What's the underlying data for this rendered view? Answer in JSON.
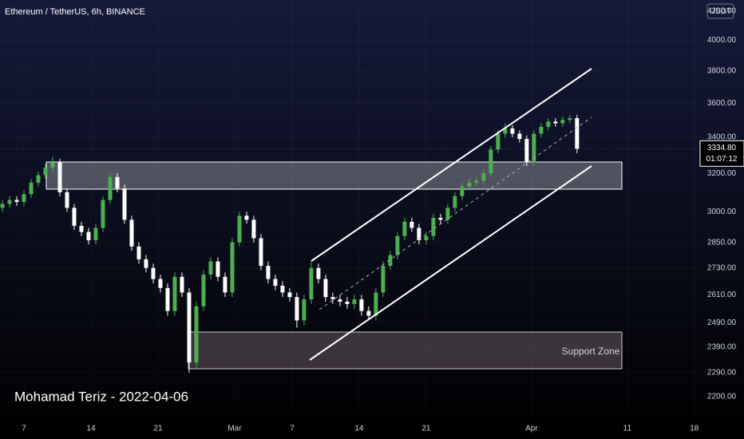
{
  "chart_data": {
    "type": "candlestick",
    "title": "Ethereum / TetherUS, 6h, BINANCE",
    "currency": "USDT",
    "watermark": "Mohamad Teriz - 2022-04-06",
    "annotations": [
      "Support Zone"
    ],
    "last_price": {
      "value": 3334.8,
      "label": "3334.80"
    },
    "countdown": "01:07:12",
    "log_scale": true,
    "up_color": "#4caf50",
    "down_color": "#ffffff",
    "xlim": [
      35.5,
      108.6
    ],
    "xticks": [
      {
        "value": 38,
        "label": "7"
      },
      {
        "value": 45,
        "label": "14"
      },
      {
        "value": 52,
        "label": "21"
      },
      {
        "value": 60,
        "label": "Mar"
      },
      {
        "value": 66,
        "label": "7"
      },
      {
        "value": 73,
        "label": "14"
      },
      {
        "value": 80,
        "label": "21"
      },
      {
        "value": 91,
        "label": "Apr"
      },
      {
        "value": 101,
        "label": "11"
      },
      {
        "value": 108,
        "label": "18"
      }
    ],
    "ylim": [
      2133,
      4280
    ],
    "yticks": [
      {
        "value": 2200,
        "label": "2200.00"
      },
      {
        "value": 2290,
        "label": "2290.00"
      },
      {
        "value": 2390,
        "label": "2390.00"
      },
      {
        "value": 2490,
        "label": "2490.00"
      },
      {
        "value": 2610,
        "label": "2610.00"
      },
      {
        "value": 2730,
        "label": "2730.00"
      },
      {
        "value": 2850,
        "label": "2850.00"
      },
      {
        "value": 3000,
        "label": "3000.00"
      },
      {
        "value": 3200,
        "label": "3200.00"
      },
      {
        "value": 3400,
        "label": "3400.00"
      },
      {
        "value": 3600,
        "label": "3600.00"
      },
      {
        "value": 3800,
        "label": "3800.00"
      },
      {
        "value": 4000,
        "label": "4000.00"
      },
      {
        "value": 4200,
        "label": "4200.00"
      }
    ],
    "x": [
      35.75,
      36.5,
      37.25,
      38,
      38.75,
      39.5,
      40.25,
      41,
      41.75,
      42.5,
      43.25,
      44,
      44.75,
      45.5,
      46.25,
      47,
      47.75,
      48.5,
      49.25,
      50,
      50.75,
      51.5,
      52.25,
      53,
      53.75,
      54.5,
      55.25,
      56,
      56.75,
      57.5,
      58.25,
      59,
      59.75,
      60.5,
      61.25,
      62,
      62.75,
      63.5,
      64.25,
      65,
      65.75,
      66.5,
      67.25,
      68,
      68.75,
      69.5,
      70.25,
      71,
      71.75,
      72.5,
      73.25,
      74,
      74.75,
      75.5,
      76.25,
      77,
      77.75,
      78.5,
      79.25,
      80,
      80.75,
      81.5,
      82.25,
      83,
      83.75,
      84.5,
      85.25,
      86,
      86.75,
      87.5,
      88.25,
      89,
      89.75,
      90.5,
      91.25,
      92,
      92.75,
      93.5,
      94.25,
      95,
      95.75
    ],
    "open": [
      3020,
      3040,
      3060,
      3050,
      3090,
      3150,
      3190,
      3230,
      3260,
      3100,
      3020,
      2930,
      2900,
      2860,
      2920,
      3060,
      3180,
      3120,
      2960,
      2830,
      2770,
      2730,
      2680,
      2640,
      2540,
      2690,
      2620,
      2330,
      2560,
      2700,
      2760,
      2690,
      2620,
      2850,
      2980,
      2960,
      2870,
      2740,
      2680,
      2650,
      2620,
      2600,
      2500,
      2590,
      2730,
      2680,
      2600,
      2590,
      2580,
      2570,
      2590,
      2540,
      2520,
      2620,
      2740,
      2790,
      2880,
      2950,
      2920,
      2860,
      2880,
      2970,
      2960,
      3020,
      3080,
      3130,
      3150,
      3160,
      3200,
      3330,
      3420,
      3450,
      3420,
      3390,
      3260,
      3420,
      3460,
      3490,
      3480,
      3500,
      3510
    ],
    "high": [
      3060,
      3080,
      3080,
      3110,
      3170,
      3210,
      3250,
      3290,
      3280,
      3120,
      3040,
      2950,
      2920,
      2940,
      3080,
      3200,
      3200,
      3140,
      2980,
      2850,
      2790,
      2750,
      2700,
      2660,
      2710,
      2710,
      2640,
      2580,
      2720,
      2780,
      2780,
      2710,
      2870,
      3000,
      3000,
      2980,
      2890,
      2760,
      2700,
      2670,
      2640,
      2620,
      2610,
      2760,
      2750,
      2700,
      2620,
      2610,
      2600,
      2610,
      2610,
      2560,
      2640,
      2760,
      2810,
      2900,
      2970,
      2970,
      2940,
      2900,
      2990,
      2990,
      3040,
      3100,
      3150,
      3170,
      3180,
      3220,
      3350,
      3440,
      3480,
      3470,
      3440,
      3410,
      3440,
      3480,
      3510,
      3510,
      3520,
      3530,
      3530
    ],
    "low": [
      3000,
      3020,
      3030,
      3030,
      3070,
      3130,
      3170,
      3210,
      3080,
      3000,
      2910,
      2880,
      2840,
      2840,
      2900,
      3040,
      3100,
      2940,
      2810,
      2750,
      2710,
      2660,
      2620,
      2520,
      2520,
      2600,
      2290,
      2310,
      2540,
      2680,
      2670,
      2600,
      2600,
      2830,
      2940,
      2850,
      2720,
      2660,
      2630,
      2600,
      2580,
      2470,
      2480,
      2570,
      2660,
      2580,
      2570,
      2560,
      2550,
      2550,
      2520,
      2500,
      2500,
      2600,
      2720,
      2770,
      2860,
      2900,
      2840,
      2840,
      2860,
      2940,
      2940,
      3000,
      3060,
      3110,
      3130,
      3140,
      3180,
      3310,
      3400,
      3400,
      3370,
      3240,
      3240,
      3400,
      3440,
      3460,
      3460,
      3480,
      3310
    ],
    "close": [
      3040,
      3060,
      3050,
      3090,
      3150,
      3190,
      3230,
      3260,
      3100,
      3020,
      2930,
      2900,
      2860,
      2920,
      3060,
      3180,
      3120,
      2960,
      2830,
      2770,
      2730,
      2680,
      2640,
      2540,
      2690,
      2620,
      2330,
      2560,
      2700,
      2760,
      2690,
      2620,
      2850,
      2980,
      2960,
      2870,
      2740,
      2680,
      2650,
      2620,
      2600,
      2500,
      2590,
      2730,
      2680,
      2600,
      2590,
      2580,
      2570,
      2590,
      2540,
      2520,
      2620,
      2740,
      2790,
      2880,
      2950,
      2920,
      2860,
      2880,
      2970,
      2960,
      3020,
      3080,
      3130,
      3150,
      3160,
      3200,
      3330,
      3420,
      3450,
      3420,
      3390,
      3260,
      3420,
      3460,
      3490,
      3480,
      3500,
      3510,
      3334.8
    ]
  }
}
